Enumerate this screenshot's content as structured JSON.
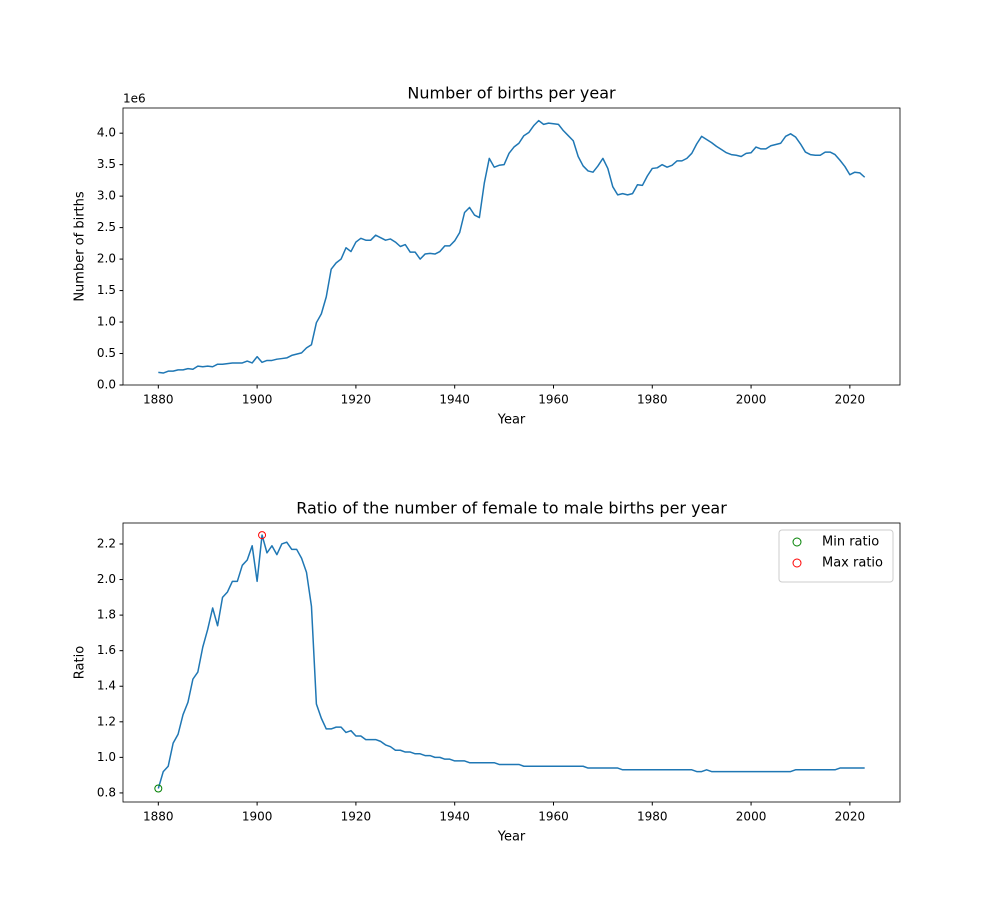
{
  "chart_data": [
    {
      "type": "line",
      "title": "Number of births per year",
      "xlabel": "Year",
      "ylabel": "Number of births",
      "offset_label": "1e6",
      "color": "#1f77b4",
      "x": [
        1880,
        1881,
        1882,
        1883,
        1884,
        1885,
        1886,
        1887,
        1888,
        1889,
        1890,
        1891,
        1892,
        1893,
        1894,
        1895,
        1896,
        1897,
        1898,
        1899,
        1900,
        1901,
        1902,
        1903,
        1904,
        1905,
        1906,
        1907,
        1908,
        1909,
        1910,
        1911,
        1912,
        1913,
        1914,
        1915,
        1916,
        1917,
        1918,
        1919,
        1920,
        1921,
        1922,
        1923,
        1924,
        1925,
        1926,
        1927,
        1928,
        1929,
        1930,
        1931,
        1932,
        1933,
        1934,
        1935,
        1936,
        1937,
        1938,
        1939,
        1940,
        1941,
        1942,
        1943,
        1944,
        1945,
        1946,
        1947,
        1948,
        1949,
        1950,
        1951,
        1952,
        1953,
        1954,
        1955,
        1956,
        1957,
        1958,
        1959,
        1960,
        1961,
        1962,
        1963,
        1964,
        1965,
        1966,
        1967,
        1968,
        1969,
        1970,
        1971,
        1972,
        1973,
        1974,
        1975,
        1976,
        1977,
        1978,
        1979,
        1980,
        1981,
        1982,
        1983,
        1984,
        1985,
        1986,
        1987,
        1988,
        1989,
        1990,
        1991,
        1992,
        1993,
        1994,
        1995,
        1996,
        1997,
        1998,
        1999,
        2000,
        2001,
        2002,
        2003,
        2004,
        2005,
        2006,
        2007,
        2008,
        2009,
        2010,
        2011,
        2012,
        2013,
        2014,
        2015,
        2016,
        2017,
        2018,
        2019,
        2020,
        2021,
        2022,
        2023
      ],
      "values": [
        0.2,
        0.19,
        0.22,
        0.22,
        0.24,
        0.24,
        0.26,
        0.25,
        0.3,
        0.29,
        0.3,
        0.29,
        0.33,
        0.33,
        0.34,
        0.35,
        0.35,
        0.35,
        0.38,
        0.35,
        0.45,
        0.36,
        0.39,
        0.39,
        0.41,
        0.42,
        0.43,
        0.47,
        0.49,
        0.51,
        0.59,
        0.64,
        0.99,
        1.13,
        1.4,
        1.84,
        1.94,
        2.0,
        2.18,
        2.12,
        2.27,
        2.33,
        2.3,
        2.3,
        2.38,
        2.34,
        2.3,
        2.32,
        2.27,
        2.2,
        2.23,
        2.11,
        2.11,
        2.0,
        2.08,
        2.09,
        2.08,
        2.12,
        2.21,
        2.21,
        2.29,
        2.42,
        2.74,
        2.82,
        2.7,
        2.66,
        3.21,
        3.6,
        3.46,
        3.49,
        3.5,
        3.68,
        3.78,
        3.84,
        3.96,
        4.01,
        4.12,
        4.2,
        4.14,
        4.16,
        4.15,
        4.14,
        4.04,
        3.96,
        3.88,
        3.63,
        3.48,
        3.4,
        3.38,
        3.48,
        3.6,
        3.44,
        3.15,
        3.02,
        3.04,
        3.02,
        3.04,
        3.18,
        3.17,
        3.32,
        3.44,
        3.45,
        3.5,
        3.46,
        3.49,
        3.56,
        3.56,
        3.6,
        3.68,
        3.83,
        3.95,
        3.9,
        3.85,
        3.79,
        3.74,
        3.69,
        3.66,
        3.65,
        3.63,
        3.68,
        3.69,
        3.78,
        3.75,
        3.75,
        3.8,
        3.82,
        3.84,
        3.95,
        3.99,
        3.94,
        3.83,
        3.7,
        3.66,
        3.65,
        3.65,
        3.7,
        3.7,
        3.66,
        3.57,
        3.47,
        3.34,
        3.38,
        3.37,
        3.3
      ],
      "xlim": [
        1872.85,
        2030.15
      ],
      "xticks": [
        1880,
        1900,
        1920,
        1940,
        1960,
        1980,
        2000,
        2020
      ],
      "ylim": [
        0,
        4.4
      ],
      "yticks": [
        {
          "value": 0,
          "label": "0.0"
        },
        0.5,
        {
          "value": 1,
          "label": "1.0"
        },
        1.5,
        {
          "value": 2,
          "label": "2.0"
        },
        2.5,
        {
          "value": 3,
          "label": "3.0"
        },
        3.5,
        {
          "value": 4,
          "label": "4.0"
        }
      ]
    },
    {
      "type": "line",
      "title": "Ratio of the number of female to male births per year",
      "xlabel": "Year",
      "ylabel": "Ratio",
      "color": "#1f77b4",
      "legend": "upper right",
      "x": [
        1880,
        1881,
        1882,
        1883,
        1884,
        1885,
        1886,
        1887,
        1888,
        1889,
        1890,
        1891,
        1892,
        1893,
        1894,
        1895,
        1896,
        1897,
        1898,
        1899,
        1900,
        1901,
        1902,
        1903,
        1904,
        1905,
        1906,
        1907,
        1908,
        1909,
        1910,
        1911,
        1912,
        1913,
        1914,
        1915,
        1916,
        1917,
        1918,
        1919,
        1920,
        1921,
        1922,
        1923,
        1924,
        1925,
        1926,
        1927,
        1928,
        1929,
        1930,
        1931,
        1932,
        1933,
        1934,
        1935,
        1936,
        1937,
        1938,
        1939,
        1940,
        1941,
        1942,
        1943,
        1944,
        1945,
        1946,
        1947,
        1948,
        1949,
        1950,
        1951,
        1952,
        1953,
        1954,
        1955,
        1956,
        1957,
        1958,
        1959,
        1960,
        1961,
        1962,
        1963,
        1964,
        1965,
        1966,
        1967,
        1968,
        1969,
        1970,
        1971,
        1972,
        1973,
        1974,
        1975,
        1976,
        1977,
        1978,
        1979,
        1980,
        1981,
        1982,
        1983,
        1984,
        1985,
        1986,
        1987,
        1988,
        1989,
        1990,
        1991,
        1992,
        1993,
        1994,
        1995,
        1996,
        1997,
        1998,
        1999,
        2000,
        2001,
        2002,
        2003,
        2004,
        2005,
        2006,
        2007,
        2008,
        2009,
        2010,
        2011,
        2012,
        2013,
        2014,
        2015,
        2016,
        2017,
        2018,
        2019,
        2020,
        2021,
        2022,
        2023
      ],
      "values": [
        0.825,
        0.92,
        0.95,
        1.08,
        1.13,
        1.24,
        1.31,
        1.44,
        1.48,
        1.62,
        1.72,
        1.84,
        1.74,
        1.9,
        1.93,
        1.99,
        1.99,
        2.08,
        2.11,
        2.19,
        1.99,
        2.25,
        2.15,
        2.19,
        2.14,
        2.2,
        2.21,
        2.17,
        2.17,
        2.12,
        2.04,
        1.85,
        1.3,
        1.22,
        1.16,
        1.16,
        1.17,
        1.17,
        1.14,
        1.15,
        1.12,
        1.12,
        1.1,
        1.1,
        1.1,
        1.09,
        1.07,
        1.06,
        1.04,
        1.04,
        1.03,
        1.03,
        1.02,
        1.02,
        1.01,
        1.01,
        1.0,
        1.0,
        0.99,
        0.99,
        0.98,
        0.98,
        0.98,
        0.97,
        0.97,
        0.97,
        0.97,
        0.97,
        0.97,
        0.96,
        0.96,
        0.96,
        0.96,
        0.96,
        0.95,
        0.95,
        0.95,
        0.95,
        0.95,
        0.95,
        0.95,
        0.95,
        0.95,
        0.95,
        0.95,
        0.95,
        0.95,
        0.94,
        0.94,
        0.94,
        0.94,
        0.94,
        0.94,
        0.94,
        0.93,
        0.93,
        0.93,
        0.93,
        0.93,
        0.93,
        0.93,
        0.93,
        0.93,
        0.93,
        0.93,
        0.93,
        0.93,
        0.93,
        0.93,
        0.92,
        0.92,
        0.93,
        0.92,
        0.92,
        0.92,
        0.92,
        0.92,
        0.92,
        0.92,
        0.92,
        0.92,
        0.92,
        0.92,
        0.92,
        0.92,
        0.92,
        0.92,
        0.92,
        0.92,
        0.93,
        0.93,
        0.93,
        0.93,
        0.93,
        0.93,
        0.93,
        0.93,
        0.93,
        0.94,
        0.94,
        0.94,
        0.94,
        0.94,
        0.94
      ],
      "markers": [
        {
          "name": "Min ratio",
          "color": "green",
          "x": 1880,
          "y": 0.825
        },
        {
          "name": "Max ratio",
          "color": "red",
          "x": 1901,
          "y": 2.25
        }
      ],
      "xlim": [
        1872.85,
        2030.15
      ],
      "xticks": [
        1880,
        1900,
        1920,
        1940,
        1960,
        1980,
        2000,
        2020
      ],
      "ylim": [
        0.749,
        2.318
      ],
      "yticks": [
        0.8,
        {
          "value": 1,
          "label": "1.0"
        },
        1.2,
        1.4,
        1.6,
        1.8,
        {
          "value": 2,
          "label": "2.0"
        },
        2.2
      ]
    }
  ]
}
